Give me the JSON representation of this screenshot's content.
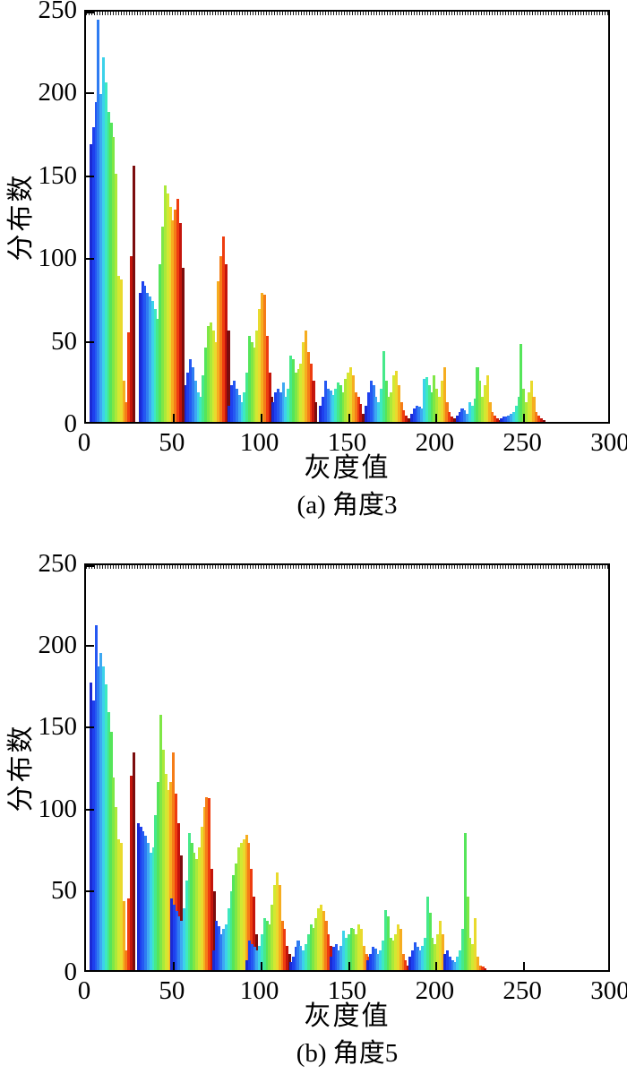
{
  "figure": {
    "background": "#ffffff",
    "axis_color": "#000000",
    "text_color": "#000000"
  },
  "chart_data": [
    {
      "type": "bar",
      "variant": "grouped-histogram",
      "caption": "(a) 角度3",
      "xlabel": "灰度值",
      "ylabel": "分布数",
      "xlim": [
        0,
        300
      ],
      "ylim": [
        0,
        250
      ],
      "x_ticks": [
        0,
        50,
        100,
        150,
        200,
        250,
        300
      ],
      "y_ticks": [
        0,
        50,
        100,
        150,
        200,
        250
      ],
      "grid": false,
      "legend": "none",
      "bar_unit": 1.44,
      "palette": [
        "#1a2ad4",
        "#1e40ee",
        "#2558f2",
        "#2e7cf2",
        "#3ea8f2",
        "#3cd2ea",
        "#3ee9c0",
        "#46e98a",
        "#55e55a",
        "#7fe746",
        "#abe93a",
        "#d2e832",
        "#e9da2e",
        "#f6ad20",
        "#f57d18",
        "#ee3d10",
        "#c4150c",
        "#7c0d0e"
      ],
      "clusters": [
        {
          "x": 2,
          "heights": [
            168,
            178,
            193,
            243,
            198,
            220,
            205,
            187,
            181,
            172,
            150,
            88,
            86,
            25,
            12,
            54,
            100,
            155
          ]
        },
        {
          "x": 30,
          "heights": [
            78,
            85,
            82,
            78,
            76,
            73,
            68,
            62,
            95,
            118,
            143,
            138,
            130,
            122,
            128,
            135,
            120,
            93
          ]
        },
        {
          "x": 56,
          "heights": [
            22,
            30,
            38,
            33,
            25,
            18,
            15,
            28,
            45,
            58,
            60,
            55,
            48,
            85,
            100,
            112,
            95,
            55
          ]
        },
        {
          "x": 81,
          "heights": [
            10,
            22,
            25,
            20,
            16,
            12,
            18,
            30,
            52,
            48,
            45,
            55,
            68,
            78,
            77,
            52,
            30,
            15
          ]
        },
        {
          "x": 106,
          "heights": [
            12,
            18,
            20,
            18,
            24,
            15,
            20,
            40,
            38,
            30,
            32,
            35,
            48,
            55,
            42,
            35,
            25,
            12
          ]
        },
        {
          "x": 133,
          "heights": [
            10,
            15,
            25,
            20,
            19,
            16,
            20,
            24,
            22,
            18,
            26,
            30,
            33,
            28,
            18,
            15,
            11,
            5
          ]
        },
        {
          "x": 159,
          "heights": [
            10,
            18,
            25,
            22,
            15,
            12,
            20,
            43,
            25,
            15,
            18,
            28,
            31,
            22,
            12,
            7,
            4,
            2
          ]
        },
        {
          "x": 185,
          "heights": [
            5,
            8,
            10,
            9,
            8,
            26,
            27,
            22,
            18,
            28,
            20,
            15,
            25,
            33,
            12,
            6,
            3,
            2
          ]
        },
        {
          "x": 211,
          "heights": [
            4,
            6,
            8,
            7,
            5,
            12,
            10,
            14,
            33,
            25,
            15,
            22,
            28,
            12,
            6,
            4,
            2,
            1
          ]
        },
        {
          "x": 236,
          "heights": [
            2,
            3,
            3,
            4,
            5,
            6,
            10,
            15,
            47,
            20,
            12,
            18,
            25,
            15,
            6,
            4,
            2,
            1
          ]
        }
      ]
    },
    {
      "type": "bar",
      "variant": "grouped-histogram",
      "caption": "(b) 角度5",
      "xlabel": "灰度值",
      "ylabel": "分布数",
      "xlim": [
        0,
        300
      ],
      "ylim": [
        0,
        250
      ],
      "x_ticks": [
        0,
        50,
        100,
        150,
        200,
        250,
        300
      ],
      "y_ticks": [
        0,
        50,
        100,
        150,
        200,
        250
      ],
      "grid": false,
      "legend": "none",
      "bar_unit": 1.44,
      "palette": [
        "#1a2ad4",
        "#1e40ee",
        "#2558f2",
        "#2e7cf2",
        "#3ea8f2",
        "#3cd2ea",
        "#3ee9c0",
        "#46e98a",
        "#55e55a",
        "#7fe746",
        "#abe93a",
        "#d2e832",
        "#e9da2e",
        "#f6ad20",
        "#f57d18",
        "#ee3d10",
        "#c4150c",
        "#7c0d0e"
      ],
      "clusters": [
        {
          "x": 2,
          "heights": [
            176,
            165,
            211,
            186,
            194,
            186,
            175,
            158,
            146,
            118,
            100,
            80,
            78,
            42,
            12,
            44,
            119,
            133
          ]
        },
        {
          "x": 29,
          "heights": [
            90,
            88,
            85,
            82,
            78,
            72,
            75,
            95,
            115,
            156,
            135,
            120,
            110,
            115,
            133,
            108,
            90,
            70
          ]
        },
        {
          "x": 48,
          "heights": [
            44,
            40,
            36,
            33,
            30,
            38,
            55,
            84,
            78,
            72,
            68,
            75,
            88,
            100,
            106,
            105,
            62,
            48
          ]
        },
        {
          "x": 72,
          "heights": [
            12,
            30,
            27,
            22,
            25,
            28,
            38,
            48,
            58,
            65,
            75,
            78,
            80,
            83,
            78,
            62,
            45,
            22
          ]
        },
        {
          "x": 91,
          "heights": [
            6,
            18,
            16,
            14,
            12,
            15,
            22,
            32,
            30,
            28,
            40,
            52,
            60,
            52,
            30,
            25,
            15,
            10
          ]
        },
        {
          "x": 116,
          "heights": [
            5,
            8,
            14,
            18,
            15,
            12,
            16,
            22,
            28,
            26,
            32,
            38,
            40,
            36,
            30,
            22,
            15,
            8
          ]
        },
        {
          "x": 139,
          "heights": [
            8,
            14,
            16,
            12,
            15,
            24,
            20,
            22,
            26,
            25,
            22,
            28,
            25,
            15,
            10,
            8,
            6,
            3
          ]
        },
        {
          "x": 160,
          "heights": [
            6,
            10,
            14,
            13,
            10,
            12,
            18,
            37,
            33,
            20,
            18,
            22,
            28,
            25,
            10,
            6,
            3,
            2
          ]
        },
        {
          "x": 184,
          "heights": [
            8,
            12,
            17,
            14,
            12,
            15,
            20,
            45,
            35,
            20,
            16,
            22,
            30,
            22,
            10,
            5,
            2,
            1
          ]
        },
        {
          "x": 204,
          "heights": [
            10,
            12,
            8,
            6,
            5,
            8,
            12,
            25,
            84,
            45,
            20,
            16,
            32,
            8,
            3,
            2,
            1,
            0
          ]
        }
      ]
    }
  ]
}
